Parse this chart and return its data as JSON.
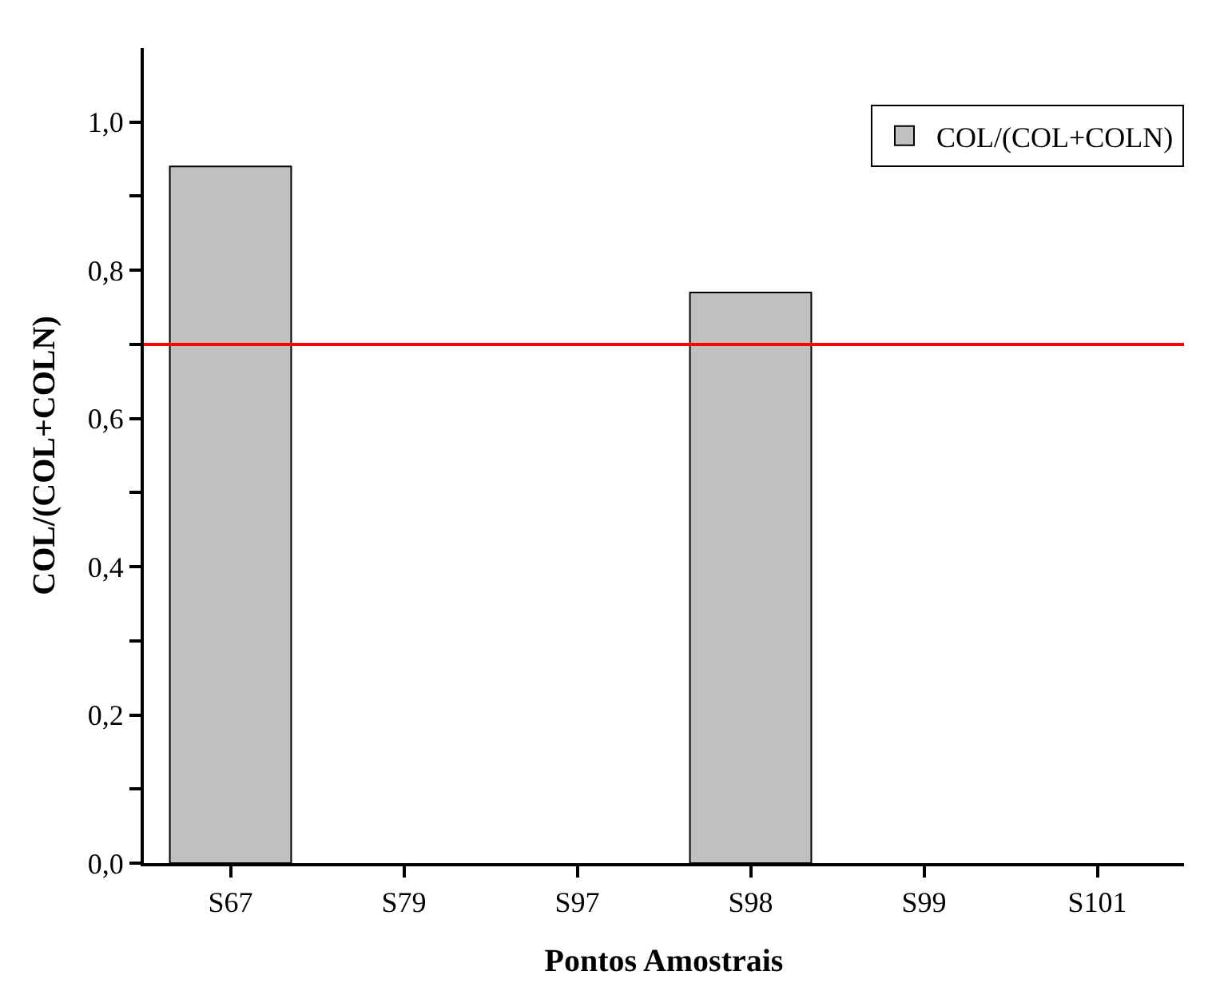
{
  "chart_data": {
    "type": "bar",
    "xlabel": "Pontos Amostrais",
    "ylabel": "COL/(COL+COLN)",
    "categories": [
      "S67",
      "S79",
      "S97",
      "S98",
      "S99",
      "S101"
    ],
    "series": [
      {
        "name": "COL/(COL+COLN)",
        "color": "#c0c0c0",
        "values": [
          0.94,
          null,
          null,
          0.77,
          null,
          null
        ]
      }
    ],
    "ylim": [
      0,
      1.1
    ],
    "yticks": [
      {
        "value": 0,
        "label": "0,0"
      },
      {
        "value": 0.1,
        "label": null
      },
      {
        "value": 0.2,
        "label": "0,2"
      },
      {
        "value": 0.3,
        "label": null
      },
      {
        "value": 0.4,
        "label": "0,4"
      },
      {
        "value": 0.5,
        "label": null
      },
      {
        "value": 0.6,
        "label": "0,6"
      },
      {
        "value": 0.7,
        "label": null
      },
      {
        "value": 0.8,
        "label": "0,8"
      },
      {
        "value": 0.9,
        "label": null
      },
      {
        "value": 1.0,
        "label": "1,0"
      }
    ],
    "ref_lines": [
      {
        "axis": "y",
        "value": 0.7,
        "color": "#ff0000"
      }
    ],
    "legend": "top right"
  }
}
